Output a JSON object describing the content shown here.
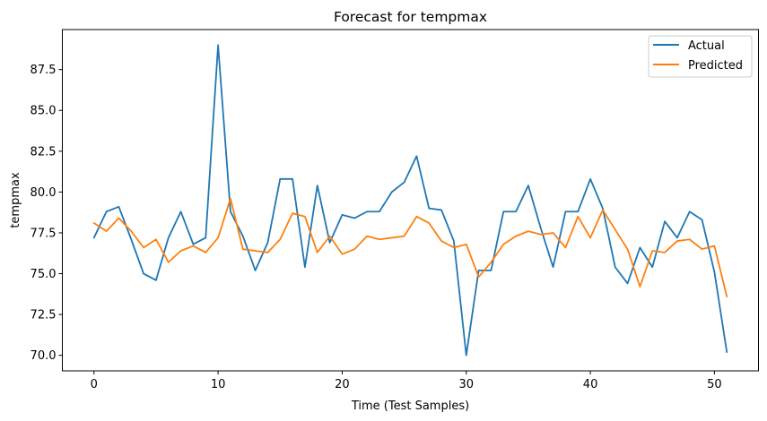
{
  "chart_data": {
    "type": "line",
    "title": "Forecast for tempmax",
    "xlabel": "Time (Test Samples)",
    "ylabel": "tempmax",
    "xlim": [
      -2.55,
      53.55
    ],
    "ylim": [
      69.05,
      89.95
    ],
    "x_ticks": [
      0,
      10,
      20,
      30,
      40,
      50
    ],
    "y_ticks": [
      70.0,
      72.5,
      75.0,
      77.5,
      80.0,
      82.5,
      85.0,
      87.5
    ],
    "y_tick_labels": [
      "70.0",
      "72.5",
      "75.0",
      "77.5",
      "80.0",
      "82.5",
      "85.0",
      "87.5"
    ],
    "grid": false,
    "legend_position": "top-right",
    "series": [
      {
        "name": "Actual",
        "color": "#1f77b4",
        "values": [
          77.2,
          78.8,
          79.1,
          77.1,
          75.0,
          74.6,
          77.2,
          78.8,
          76.8,
          77.2,
          89.0,
          78.8,
          77.3,
          75.2,
          76.9,
          80.8,
          80.8,
          75.4,
          80.4,
          76.9,
          78.6,
          78.4,
          78.8,
          78.8,
          80.0,
          80.6,
          82.2,
          79.0,
          78.9,
          77.0,
          70.0,
          75.2,
          75.2,
          78.8,
          78.8,
          80.4,
          77.8,
          75.4,
          78.8,
          78.8,
          80.8,
          79.0,
          75.4,
          74.4,
          76.6,
          75.4,
          78.2,
          77.2,
          78.8,
          78.3,
          75.1,
          70.2
        ]
      },
      {
        "name": "Predicted",
        "color": "#ff7f0e",
        "values": [
          78.1,
          77.6,
          78.4,
          77.6,
          76.6,
          77.1,
          75.7,
          76.4,
          76.7,
          76.3,
          77.2,
          79.6,
          76.5,
          76.4,
          76.3,
          77.1,
          78.7,
          78.5,
          76.3,
          77.3,
          76.2,
          76.5,
          77.3,
          77.1,
          77.2,
          77.3,
          78.5,
          78.1,
          77.0,
          76.6,
          76.8,
          74.8,
          75.7,
          76.8,
          77.3,
          77.6,
          77.4,
          77.5,
          76.6,
          78.5,
          77.2,
          78.9,
          77.7,
          76.5,
          74.2,
          76.4,
          76.3,
          77.0,
          77.1,
          76.5,
          76.7,
          73.6
        ]
      }
    ]
  }
}
